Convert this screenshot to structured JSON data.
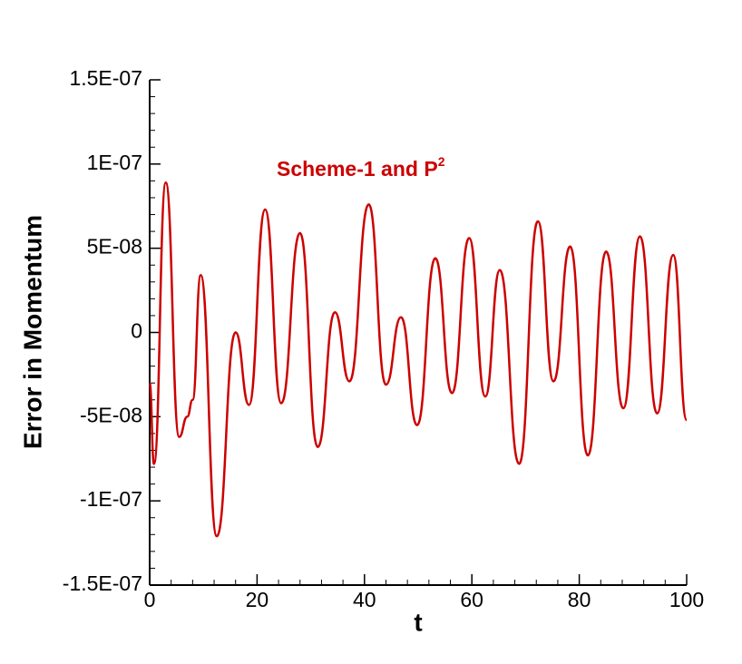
{
  "chart_data": {
    "type": "line",
    "annotation": "Scheme-1 and P",
    "annotation_superscript": "2",
    "xlabel": "t",
    "ylabel": "Error in Momentum",
    "x": [
      0,
      0.8,
      3,
      5.5,
      7,
      8,
      9.5,
      12.5,
      16,
      18.5,
      21.5,
      24.5,
      28,
      31.3,
      34.5,
      37.2,
      40.8,
      44,
      46.8,
      49.8,
      53.2,
      56.3,
      59.5,
      62.5,
      65.2,
      68.8,
      72.3,
      75.2,
      78.3,
      81.6,
      85,
      88.2,
      91.3,
      94.5,
      97.5,
      100
    ],
    "series": [
      {
        "name": "Scheme-1",
        "color": "#cc0000",
        "values": [
          -3e-08,
          -7.8e-08,
          8.9e-08,
          -6.2e-08,
          -5e-08,
          -4e-08,
          3.4e-08,
          -1.21e-07,
          0,
          -4.3e-08,
          7.3e-08,
          -4.2e-08,
          5.9e-08,
          -6.8e-08,
          1.2e-08,
          -2.9e-08,
          7.6e-08,
          -3.1e-08,
          9e-09,
          -5.5e-08,
          4.4e-08,
          -3.6e-08,
          5.6e-08,
          -3.8e-08,
          3.7e-08,
          -7.8e-08,
          6.6e-08,
          -2.9e-08,
          5.1e-08,
          -7.3e-08,
          4.8e-08,
          -4.5e-08,
          5.7e-08,
          -4.8e-08,
          4.6e-08,
          -5.2e-08
        ]
      }
    ],
    "xlim": [
      0,
      100
    ],
    "xticks": [
      0,
      20,
      40,
      60,
      80,
      100
    ],
    "ylim": [
      -1.5e-07,
      1.5e-07
    ],
    "yticks": [
      {
        "value": -1.5e-07,
        "label": "-1.5E-07"
      },
      {
        "value": -1e-07,
        "label": "-1E-07"
      },
      {
        "value": -5e-08,
        "label": "-5E-08"
      },
      0,
      {
        "value": 5e-08,
        "label": "5E-08"
      },
      {
        "value": 1e-07,
        "label": "1E-07"
      },
      {
        "value": 1.5e-07,
        "label": "1.5E-07"
      }
    ],
    "grid": false
  }
}
